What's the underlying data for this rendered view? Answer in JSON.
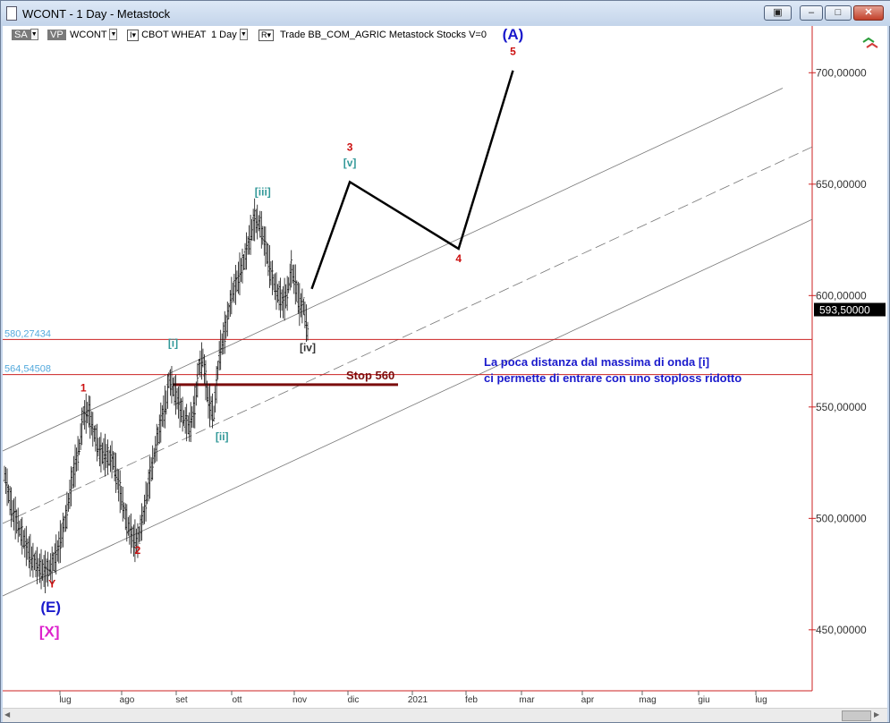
{
  "window": {
    "title": "WCONT - 1 Day - Metastock",
    "controls": {
      "restore": "▣",
      "minimize": "–",
      "maximize": "□",
      "close": "✕"
    }
  },
  "toolbar": {
    "sa_label": "SA",
    "vp_label": "VP",
    "symbol": "WCONT",
    "instrument_marker": "I",
    "instrument": "CBOT WHEAT",
    "periodicity": "1 Day",
    "r_marker": "R",
    "info": "Trade  BB_COM_AGRIC  Metastock  Stocks  V=0"
  },
  "chart_data": {
    "type": "ohlc-bar",
    "y_axis": {
      "range": [
        415,
        721
      ],
      "tick_labels": [
        "700,00000",
        "650,00000",
        "600,00000",
        "550,00000",
        "500,00000",
        "450,00000"
      ],
      "ticks": [
        700,
        650,
        600,
        550,
        500,
        450
      ]
    },
    "x_axis": {
      "month_labels": [
        "lug",
        "ago",
        "set",
        "ott",
        "nov",
        "dic",
        "2021",
        "feb",
        "mar",
        "apr",
        "mag",
        "giu",
        "lug"
      ]
    },
    "last_price_label": "593,50000",
    "last_price": 593.5,
    "reference_levels": [
      {
        "value": 580.27434,
        "label": "580,27434"
      },
      {
        "value": 564.54508,
        "label": "564,54508"
      }
    ],
    "stop": {
      "value": 560,
      "label": "Stop 560"
    },
    "price_path": [
      [
        0,
        520
      ],
      [
        5,
        505
      ],
      [
        10,
        497
      ],
      [
        15,
        489
      ],
      [
        20,
        482
      ],
      [
        25,
        478
      ],
      [
        30,
        476
      ],
      [
        35,
        479
      ],
      [
        40,
        487
      ],
      [
        45,
        500
      ],
      [
        50,
        518
      ],
      [
        55,
        532
      ],
      [
        58,
        546
      ],
      [
        62,
        548
      ],
      [
        65,
        540
      ],
      [
        70,
        530
      ],
      [
        75,
        528
      ],
      [
        80,
        526
      ],
      [
        85,
        512
      ],
      [
        90,
        498
      ],
      [
        95,
        490
      ],
      [
        98,
        490
      ],
      [
        103,
        504
      ],
      [
        108,
        522
      ],
      [
        112,
        534
      ],
      [
        116,
        546
      ],
      [
        119,
        552
      ],
      [
        121,
        562
      ],
      [
        124,
        559
      ],
      [
        128,
        552
      ],
      [
        132,
        545
      ],
      [
        136,
        541
      ],
      [
        140,
        550
      ],
      [
        143,
        568
      ],
      [
        146,
        572
      ],
      [
        150,
        552
      ],
      [
        154,
        547
      ],
      [
        158,
        573
      ],
      [
        163,
        586
      ],
      [
        167,
        600
      ],
      [
        172,
        608
      ],
      [
        176,
        615
      ],
      [
        180,
        625
      ],
      [
        184,
        634
      ],
      [
        188,
        632
      ],
      [
        192,
        622
      ],
      [
        196,
        610
      ],
      [
        200,
        602
      ],
      [
        205,
        597
      ],
      [
        208,
        601
      ],
      [
        211,
        612
      ],
      [
        214,
        605
      ],
      [
        217,
        596
      ],
      [
        220,
        595
      ],
      [
        223,
        584
      ]
    ],
    "projection": [
      {
        "label": "",
        "x": 226,
        "y": 603
      },
      {
        "label": "3",
        "x": 254,
        "y": 651
      },
      {
        "label": "4",
        "x": 334,
        "y": 621
      },
      {
        "label": "5",
        "x": 374,
        "y": 701
      }
    ],
    "channel": "parallel trend channel with dashed midline",
    "wave_labels": [
      {
        "text": "1",
        "color": "#cc1111",
        "x": 58,
        "y": 557
      },
      {
        "text": "2",
        "color": "#cc1111",
        "x": 98,
        "y": 484
      },
      {
        "text": "Y",
        "color": "#cc1111",
        "x": 35,
        "y": 469
      },
      {
        "text": "(E)",
        "color": "#1a1acc",
        "x": 34,
        "y": 458
      },
      {
        "text": "[X]",
        "color": "#dd22cc",
        "x": 33,
        "y": 447
      },
      {
        "text": "[i]",
        "color": "#339999",
        "x": 124,
        "y": 577
      },
      {
        "text": "[ii]",
        "color": "#339999",
        "x": 160,
        "y": 535
      },
      {
        "text": "[iii]",
        "color": "#339999",
        "x": 190,
        "y": 645
      },
      {
        "text": "[iv]",
        "color": "#333333",
        "x": 223,
        "y": 575
      },
      {
        "text": "[v]",
        "color": "#339999",
        "x": 254,
        "y": 658
      },
      {
        "text": "3",
        "color": "#cc1111",
        "x": 254,
        "y": 665
      },
      {
        "text": "4",
        "color": "#cc1111",
        "x": 334,
        "y": 615
      },
      {
        "text": "5",
        "color": "#cc1111",
        "x": 374,
        "y": 708
      },
      {
        "text": "(A)",
        "color": "#1a1acc",
        "x": 374,
        "y": 715
      }
    ],
    "annotation": [
      "La poca distanza dal massima di onda [i]",
      "ci permette di entrare con uno stoploss ridotto"
    ]
  },
  "colors": {
    "background": "#ffffff",
    "axis": "#cc2222",
    "bars": "#111111",
    "reference": "#cc2222",
    "stop": "#7b0d0d",
    "note": "#1a1acc"
  }
}
